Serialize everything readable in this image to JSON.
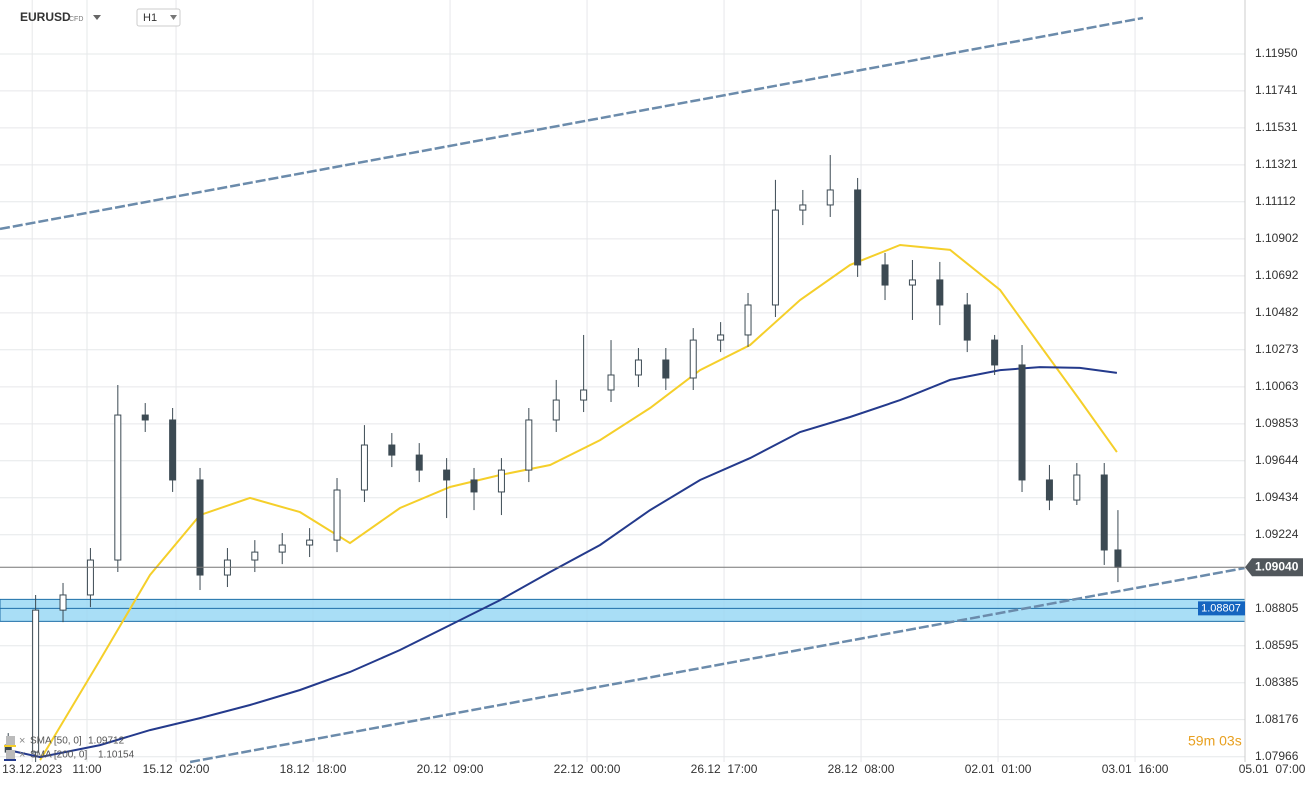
{
  "chart_data": {
    "type": "candlestick",
    "symbol": "EURUSD",
    "symbol_kind": "CFD",
    "timeframe": "H1",
    "candle_color": "#3c4a53",
    "x": [
      -23,
      -15,
      -7,
      1,
      9,
      17,
      25,
      33,
      41,
      49,
      57,
      65,
      73,
      81,
      89,
      97,
      105,
      113,
      121,
      129,
      137,
      145,
      153,
      161,
      169,
      177,
      185,
      193,
      201,
      209,
      217,
      225,
      233,
      241,
      249,
      257,
      265,
      273,
      281,
      289,
      297,
      301
    ],
    "open": [
      1.08032,
      1.07992,
      1.08797,
      1.08883,
      1.09081,
      1.09903,
      1.09875,
      1.09535,
      1.08996,
      1.09081,
      1.09126,
      1.09166,
      1.09194,
      1.09478,
      1.09733,
      1.09676,
      1.09591,
      1.09535,
      1.09467,
      1.09591,
      1.09875,
      1.09988,
      1.10045,
      1.1013,
      1.10215,
      1.10113,
      1.10328,
      1.10357,
      1.10527,
      1.11065,
      1.11094,
      1.11179,
      1.10754,
      1.1064,
      1.10669,
      1.10527,
      1.10328,
      1.10187,
      1.09535,
      1.09421,
      1.09563,
      1.09138
    ],
    "high": [
      1.081,
      1.08883,
      1.08951,
      1.09149,
      1.10073,
      1.09971,
      1.09943,
      1.09603,
      1.09149,
      1.09194,
      1.09234,
      1.09262,
      1.09546,
      1.09846,
      1.09801,
      1.09744,
      1.09659,
      1.09603,
      1.09659,
      1.09943,
      1.10102,
      1.10357,
      1.10328,
      1.10283,
      1.10283,
      1.10396,
      1.1043,
      1.10595,
      1.11236,
      1.11179,
      1.11377,
      1.11247,
      1.10822,
      1.10782,
      1.10771,
      1.10595,
      1.10357,
      1.103,
      1.0962,
      1.09631,
      1.09631,
      1.09364
    ],
    "low": [
      1.07947,
      1.07936,
      1.08729,
      1.08814,
      1.09013,
      1.09807,
      1.09467,
      1.08911,
      1.08928,
      1.09013,
      1.09058,
      1.09098,
      1.09126,
      1.0941,
      1.09608,
      1.09523,
      1.09319,
      1.09364,
      1.09336,
      1.09523,
      1.09807,
      1.0992,
      1.09977,
      1.10062,
      1.10045,
      1.10045,
      1.1026,
      1.10289,
      1.10459,
      1.1098,
      1.11026,
      1.10686,
      1.10555,
      1.10442,
      1.10413,
      1.1026,
      1.1013,
      1.09467,
      1.09364,
      1.09393,
      1.09053,
      1.08956
    ],
    "close": [
      1.07992,
      1.08797,
      1.08883,
      1.09081,
      1.09903,
      1.09875,
      1.09535,
      1.08996,
      1.09081,
      1.09126,
      1.09166,
      1.09194,
      1.09478,
      1.09733,
      1.09676,
      1.09591,
      1.09535,
      1.09467,
      1.09591,
      1.09875,
      1.09988,
      1.10045,
      1.1013,
      1.10215,
      1.10113,
      1.10328,
      1.10357,
      1.10527,
      1.11065,
      1.11094,
      1.11179,
      1.10754,
      1.1064,
      1.10669,
      1.10527,
      1.10328,
      1.10187,
      1.09535,
      1.09421,
      1.09563,
      1.09138,
      1.0904
    ],
    "xlim": [
      -25.4,
      338.1
    ],
    "xticks": [
      {
        "value": -16,
        "label": "13.12.2023"
      },
      {
        "value": 0,
        "label": "11:00"
      },
      {
        "value": 26,
        "label": "15.12  02:00"
      },
      {
        "value": 66,
        "label": "18.12  18:00"
      },
      {
        "value": 106,
        "label": "20.12  09:00"
      },
      {
        "value": 146,
        "label": "22.12  00:00"
      },
      {
        "value": 186,
        "label": "26.12  17:00"
      },
      {
        "value": 226,
        "label": "28.12  08:00"
      },
      {
        "value": 266,
        "label": "02.01  01:00"
      },
      {
        "value": 306,
        "label": "03.01  16:00"
      },
      {
        "value": 346,
        "label": "05.01  07:00"
      }
    ],
    "ylim": [
      1.07936,
      1.12256
    ],
    "yticks": [
      {
        "value": 1.1195,
        "label": "1.11950"
      },
      1.11741,
      1.11531,
      1.11321,
      1.11112,
      1.10902,
      1.10692,
      1.10482,
      1.10273,
      1.10063,
      1.09853,
      1.09644,
      1.09434,
      1.09224,
      1.08805,
      1.08595,
      1.08385,
      1.08176,
      1.07966
    ],
    "grid": true,
    "series": [
      {
        "name": "SMA [50, 0]",
        "color": "#f5cf2a",
        "last_value": 1.09712,
        "x": [
          -23.1,
          -13.7,
          3.8,
          18.4,
          33.0,
          47.6,
          62.2,
          76.8,
          91.4,
          106.0,
          120.6,
          135.2,
          149.8,
          164.4,
          179.0,
          193.6,
          208.2,
          222.8,
          237.4,
          252.0,
          266.6,
          278.2,
          289.9,
          300.7
        ],
        "values": [
          null,
          1.07947,
          1.08514,
          1.08996,
          1.09336,
          1.09433,
          1.09353,
          1.09177,
          1.09376,
          1.09495,
          1.09563,
          1.0962,
          1.09761,
          1.09943,
          1.10158,
          1.103,
          1.10555,
          1.10754,
          1.10867,
          1.10839,
          1.10612,
          1.103,
          1.09988,
          1.09693
        ]
      },
      {
        "name": "SMA [200, 0]",
        "color": "#243a8c",
        "last_value": 1.10154,
        "x": [
          -23.1,
          -13.7,
          3.8,
          18.4,
          33.0,
          47.6,
          62.2,
          76.8,
          91.4,
          106.0,
          120.6,
          135.2,
          149.8,
          164.4,
          179.0,
          193.6,
          208.2,
          222.8,
          237.4,
          252.0,
          266.6,
          278.2,
          289.9,
          300.7
        ],
        "values": [
          1.08004,
          1.07964,
          1.08032,
          1.08117,
          1.08185,
          1.08259,
          1.08344,
          1.08446,
          1.08571,
          1.08712,
          1.08854,
          1.09013,
          1.09166,
          1.09364,
          1.09535,
          1.09659,
          1.09807,
          1.09892,
          1.09988,
          1.10102,
          1.10158,
          1.10175,
          1.1017,
          1.10142
        ]
      }
    ],
    "trendlines": [
      {
        "color": "#6b8bab",
        "x": [
          -25.4,
          308.3
        ],
        "values": [
          1.10958,
          1.12154
        ]
      },
      {
        "color": "#6b8bab",
        "x": [
          30.1,
          338.1
        ],
        "values": [
          1.07936,
          1.09036
        ]
      }
    ],
    "support_zone": {
      "value": 1.08807,
      "color": "#9ad8f5"
    },
    "last_price": {
      "value": 1.0904,
      "label": "1.09040"
    },
    "countdown": "59m 03s"
  }
}
